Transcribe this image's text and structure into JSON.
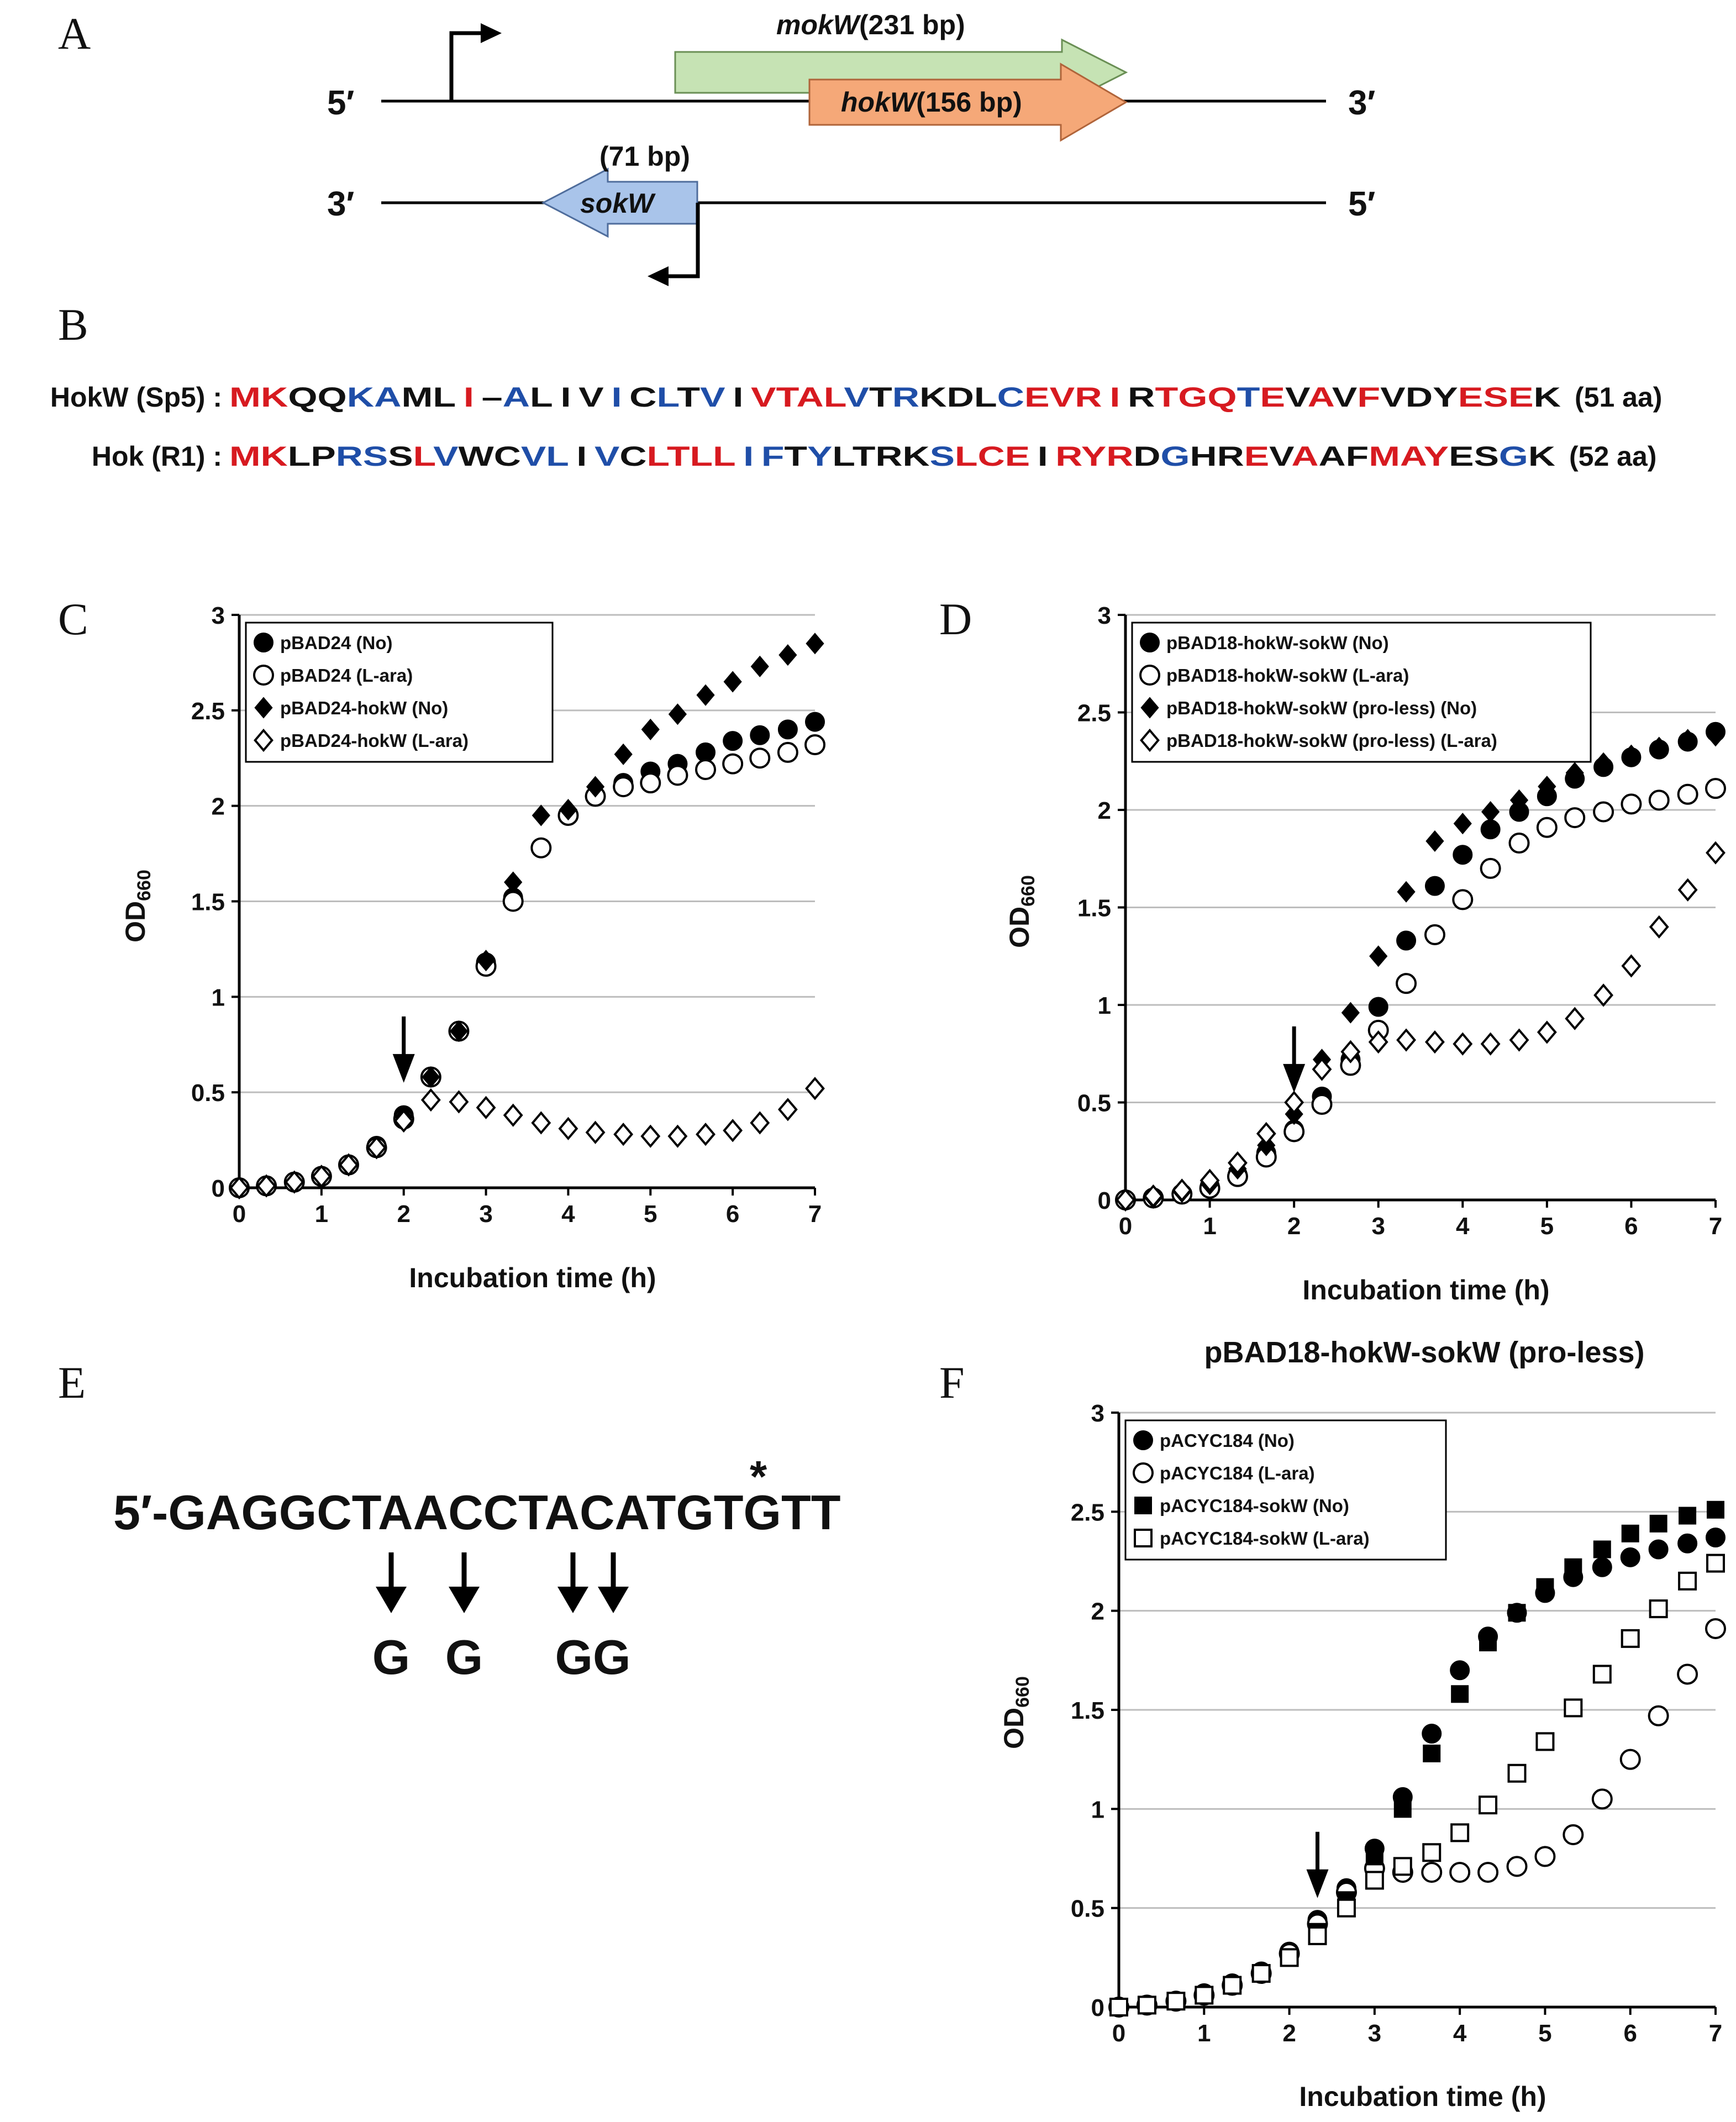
{
  "panels": {
    "A": {
      "letter": "A",
      "top_strand": {
        "left_end": "5′",
        "right_end": "3′"
      },
      "bottom_strand": {
        "left_end": "3′",
        "right_end": "5′"
      },
      "genes": {
        "mokW": {
          "name": "mokW",
          "size": "(231 bp)",
          "color": "#c6e3b4"
        },
        "hokW": {
          "name": "hokW",
          "size": "(156 bp)",
          "color": "#f5a878"
        },
        "sokW": {
          "name": "sokW",
          "size": "(71 bp)",
          "color": "#a9c4ea"
        }
      }
    },
    "B": {
      "letter": "B",
      "colors": {
        "red": "#d71a20",
        "blue": "#1f4ea8",
        "black": "#111111"
      },
      "rows": [
        {
          "label": "HokW (Sp5) :",
          "seq": "MKQQKAML I –AL I V I CLTV I VTALVTRKDLCEVR I RTGQTEVAVFVDYESEK",
          "colors": "rrkkbbkkrkbkkkbkbkbkrrrrbkbkkkbrrrrkrrrbrkrkrkkkrrrkbkbkrrrrrr",
          "len": "(51 aa)"
        },
        {
          "label": "Hok (R1) :",
          "seq": "MKLPRSSLVWCVL I VCLTLL I FTYLTRKSLCE I RYRDGHREVAAFMAYESGK",
          "colors": "rrkkbbkrbkkbbkbkrrrrbbkbkkkkbrrrkrrrkbkkrkrkkrrrkkbkrrrrr",
          "len": "(52 aa)"
        }
      ]
    },
    "C": {
      "letter": "C",
      "ylabel": "OD",
      "ylabel_sub": "660",
      "xlabel": "Incubation time (h)",
      "legend": [
        "pBAD24 (No)",
        "pBAD24 (L-ara)",
        "pBAD24-hokW (No)",
        "pBAD24-hokW (L-ara)"
      ]
    },
    "D": {
      "letter": "D",
      "ylabel": "OD",
      "ylabel_sub": "660",
      "xlabel": "Incubation time (h)",
      "legend": [
        "pBAD18-hokW-sokW (No)",
        "pBAD18-hokW-sokW (L-ara)",
        "pBAD18-hokW-sokW (pro-less) (No)",
        "pBAD18-hokW-sokW (pro-less) (L-ara)"
      ]
    },
    "E": {
      "letter": "E",
      "sequence": "5′-GAGGCTAACCTACATGTGTT",
      "star": "*",
      "mutations": [
        "G",
        "G",
        "GG"
      ]
    },
    "F": {
      "letter": "F",
      "title": "pBAD18-hokW-sokW (pro-less)",
      "ylabel": "OD",
      "ylabel_sub": "660",
      "xlabel": "Incubation time (h)",
      "legend": [
        "pACYC184 (No)",
        "pACYC184 (L-ara)",
        "pACYC184-sokW (No)",
        "pACYC184-sokW (L-ara)"
      ]
    }
  },
  "chart_data": [
    {
      "panel": "C",
      "type": "scatter",
      "title": "",
      "xlabel": "Incubation time (h)",
      "ylabel": "OD660",
      "xlim": [
        0,
        7
      ],
      "ylim": [
        0,
        3
      ],
      "xticks": [
        "0",
        "1",
        "2",
        "3",
        "4",
        "5",
        "6",
        "7"
      ],
      "yticks": [
        "0",
        "0.5",
        "1",
        "1.5",
        "2",
        "2.5",
        "3"
      ],
      "grid": true,
      "arrow_x": 2,
      "legend_position": "top-left",
      "series": [
        {
          "name": "pBAD24 (No)",
          "marker": "filled-circle",
          "x": [
            0,
            0.33,
            0.67,
            1,
            1.33,
            1.67,
            2,
            2.33,
            2.67,
            3,
            3.33,
            3.67,
            4,
            4.33,
            4.67,
            5,
            5.33,
            5.67,
            6,
            6.33,
            6.67,
            7
          ],
          "y": [
            0,
            0.01,
            0.03,
            0.06,
            0.12,
            0.22,
            0.38,
            0.58,
            0.82,
            1.18,
            1.52,
            1.78,
            1.95,
            2.05,
            2.12,
            2.18,
            2.22,
            2.28,
            2.34,
            2.37,
            2.4,
            2.44
          ]
        },
        {
          "name": "pBAD24 (L-ara)",
          "marker": "open-circle",
          "x": [
            0,
            0.33,
            0.67,
            1,
            1.33,
            1.67,
            2,
            2.33,
            2.67,
            3,
            3.33,
            3.67,
            4,
            4.33,
            4.67,
            5,
            5.33,
            5.67,
            6,
            6.33,
            6.67,
            7
          ],
          "y": [
            0,
            0.01,
            0.03,
            0.06,
            0.12,
            0.21,
            0.36,
            0.58,
            0.82,
            1.16,
            1.5,
            1.78,
            1.95,
            2.05,
            2.1,
            2.12,
            2.16,
            2.19,
            2.22,
            2.25,
            2.28,
            2.32
          ]
        },
        {
          "name": "pBAD24-hokW (No)",
          "marker": "filled-diamond",
          "x": [
            0,
            0.33,
            0.67,
            1,
            1.33,
            1.67,
            2,
            2.33,
            2.67,
            3,
            3.33,
            3.67,
            4,
            4.33,
            4.67,
            5,
            5.33,
            5.67,
            6,
            6.33,
            6.67,
            7
          ],
          "y": [
            0,
            0.01,
            0.03,
            0.06,
            0.12,
            0.21,
            0.37,
            0.58,
            0.82,
            1.19,
            1.6,
            1.95,
            1.98,
            2.1,
            2.27,
            2.4,
            2.48,
            2.58,
            2.65,
            2.73,
            2.79,
            2.85
          ]
        },
        {
          "name": "pBAD24-hokW (L-ara)",
          "marker": "open-diamond",
          "x": [
            0,
            0.33,
            0.67,
            1,
            1.33,
            1.67,
            2,
            2.33,
            2.67,
            3,
            3.33,
            3.67,
            4,
            4.33,
            4.67,
            5,
            5.33,
            5.67,
            6,
            6.33,
            6.67,
            7
          ],
          "y": [
            0,
            0.01,
            0.03,
            0.06,
            0.12,
            0.21,
            0.35,
            0.46,
            0.45,
            0.42,
            0.38,
            0.34,
            0.31,
            0.29,
            0.28,
            0.27,
            0.27,
            0.28,
            0.3,
            0.34,
            0.41,
            0.52
          ]
        }
      ]
    },
    {
      "panel": "D",
      "type": "scatter",
      "title": "",
      "xlabel": "Incubation time (h)",
      "ylabel": "OD660",
      "xlim": [
        0,
        7
      ],
      "ylim": [
        0,
        3
      ],
      "xticks": [
        "0",
        "1",
        "2",
        "3",
        "4",
        "5",
        "6",
        "7"
      ],
      "yticks": [
        "0",
        "0.5",
        "1",
        "1.5",
        "2",
        "2.5",
        "3"
      ],
      "grid": true,
      "arrow_x": 2,
      "legend_position": "top-left",
      "series": [
        {
          "name": "pBAD18-hokW-sokW (No)",
          "marker": "filled-circle",
          "x": [
            0,
            0.33,
            0.67,
            1,
            1.33,
            1.67,
            2,
            2.33,
            2.67,
            3,
            3.33,
            3.67,
            4,
            4.33,
            4.67,
            5,
            5.33,
            5.67,
            6,
            6.33,
            6.67,
            7
          ],
          "y": [
            0,
            0.01,
            0.03,
            0.07,
            0.13,
            0.24,
            0.36,
            0.53,
            0.72,
            0.99,
            1.33,
            1.61,
            1.77,
            1.9,
            1.99,
            2.07,
            2.16,
            2.22,
            2.27,
            2.31,
            2.35,
            2.4
          ]
        },
        {
          "name": "pBAD18-hokW-sokW (L-ara)",
          "marker": "open-circle",
          "x": [
            0,
            0.33,
            0.67,
            1,
            1.33,
            1.67,
            2,
            2.33,
            2.67,
            3,
            3.33,
            3.67,
            4,
            4.33,
            4.67,
            5,
            5.33,
            5.67,
            6,
            6.33,
            6.67,
            7
          ],
          "y": [
            0,
            0.01,
            0.03,
            0.06,
            0.12,
            0.22,
            0.35,
            0.49,
            0.69,
            0.87,
            1.11,
            1.36,
            1.54,
            1.7,
            1.83,
            1.91,
            1.96,
            1.99,
            2.03,
            2.05,
            2.08,
            2.11
          ]
        },
        {
          "name": "pBAD18-hokW-sokW (pro-less) (No)",
          "marker": "filled-diamond",
          "x": [
            0,
            0.33,
            0.67,
            1,
            1.33,
            1.67,
            2,
            2.33,
            2.67,
            3,
            3.33,
            3.67,
            4,
            4.33,
            4.67,
            5,
            5.33,
            5.67,
            6,
            6.33,
            6.67,
            7
          ],
          "y": [
            0,
            0.01,
            0.04,
            0.08,
            0.16,
            0.28,
            0.44,
            0.72,
            0.96,
            1.25,
            1.58,
            1.84,
            1.93,
            1.99,
            2.05,
            2.12,
            2.19,
            2.24,
            2.28,
            2.32,
            2.36,
            2.38
          ]
        },
        {
          "name": "pBAD18-hokW-sokW (pro-less) (L-ara)",
          "marker": "open-diamond",
          "x": [
            0,
            0.33,
            0.67,
            1,
            1.33,
            1.67,
            2,
            2.33,
            2.67,
            3,
            3.33,
            3.67,
            4,
            4.33,
            4.67,
            5,
            5.33,
            5.67,
            6,
            6.33,
            6.67,
            7
          ],
          "y": [
            0,
            0.02,
            0.05,
            0.1,
            0.19,
            0.34,
            0.5,
            0.67,
            0.76,
            0.81,
            0.82,
            0.81,
            0.8,
            0.8,
            0.82,
            0.86,
            0.93,
            1.05,
            1.2,
            1.4,
            1.59,
            1.78
          ]
        }
      ]
    },
    {
      "panel": "F",
      "type": "scatter",
      "title": "pBAD18-hokW-sokW (pro-less)",
      "xlabel": "Incubation time (h)",
      "ylabel": "OD660",
      "xlim": [
        0,
        7
      ],
      "ylim": [
        0,
        3
      ],
      "xticks": [
        "0",
        "1",
        "2",
        "3",
        "4",
        "5",
        "6",
        "7"
      ],
      "yticks": [
        "0",
        "0.5",
        "1",
        "1.5",
        "2",
        "2.5",
        "3"
      ],
      "grid": true,
      "arrow_x": 2.33,
      "legend_position": "top-left",
      "series": [
        {
          "name": "pACYC184 (No)",
          "marker": "filled-circle",
          "x": [
            0,
            0.33,
            0.67,
            1,
            1.33,
            1.67,
            2,
            2.33,
            2.67,
            3,
            3.33,
            3.67,
            4,
            4.33,
            4.67,
            5,
            5.33,
            5.67,
            6,
            6.33,
            6.67,
            7
          ],
          "y": [
            0,
            0.01,
            0.03,
            0.07,
            0.12,
            0.18,
            0.28,
            0.44,
            0.6,
            0.8,
            1.06,
            1.38,
            1.7,
            1.87,
            1.99,
            2.09,
            2.17,
            2.22,
            2.27,
            2.31,
            2.34,
            2.37
          ]
        },
        {
          "name": "pACYC184 (L-ara)",
          "marker": "open-circle",
          "x": [
            0,
            0.33,
            0.67,
            1,
            1.33,
            1.67,
            2,
            2.33,
            2.67,
            3,
            3.33,
            3.67,
            4,
            4.33,
            4.67,
            5,
            5.33,
            5.67,
            6,
            6.33,
            6.67,
            7
          ],
          "y": [
            0,
            0.01,
            0.03,
            0.06,
            0.11,
            0.17,
            0.27,
            0.42,
            0.58,
            0.7,
            0.68,
            0.68,
            0.68,
            0.68,
            0.71,
            0.76,
            0.87,
            1.05,
            1.25,
            1.47,
            1.68,
            1.91
          ]
        },
        {
          "name": "pACYC184-sokW (No)",
          "marker": "filled-square",
          "x": [
            0,
            0.33,
            0.67,
            1,
            1.33,
            1.67,
            2,
            2.33,
            2.67,
            3,
            3.33,
            3.67,
            4,
            4.33,
            4.67,
            5,
            5.33,
            5.67,
            6,
            6.33,
            6.67,
            7
          ],
          "y": [
            0,
            0.01,
            0.03,
            0.06,
            0.11,
            0.17,
            0.25,
            0.38,
            0.54,
            0.76,
            1.0,
            1.28,
            1.58,
            1.84,
            1.99,
            2.12,
            2.22,
            2.31,
            2.39,
            2.44,
            2.48,
            2.51
          ]
        },
        {
          "name": "pACYC184-sokW (L-ara)",
          "marker": "open-square",
          "x": [
            0,
            0.33,
            0.67,
            1,
            1.33,
            1.67,
            2,
            2.33,
            2.67,
            3,
            3.33,
            3.67,
            4,
            4.33,
            4.67,
            5,
            5.33,
            5.67,
            6,
            6.33,
            6.67,
            7
          ],
          "y": [
            0,
            0.01,
            0.03,
            0.06,
            0.11,
            0.17,
            0.25,
            0.36,
            0.5,
            0.64,
            0.71,
            0.78,
            0.88,
            1.02,
            1.18,
            1.34,
            1.51,
            1.68,
            1.86,
            2.01,
            2.15,
            2.24
          ]
        }
      ]
    }
  ]
}
